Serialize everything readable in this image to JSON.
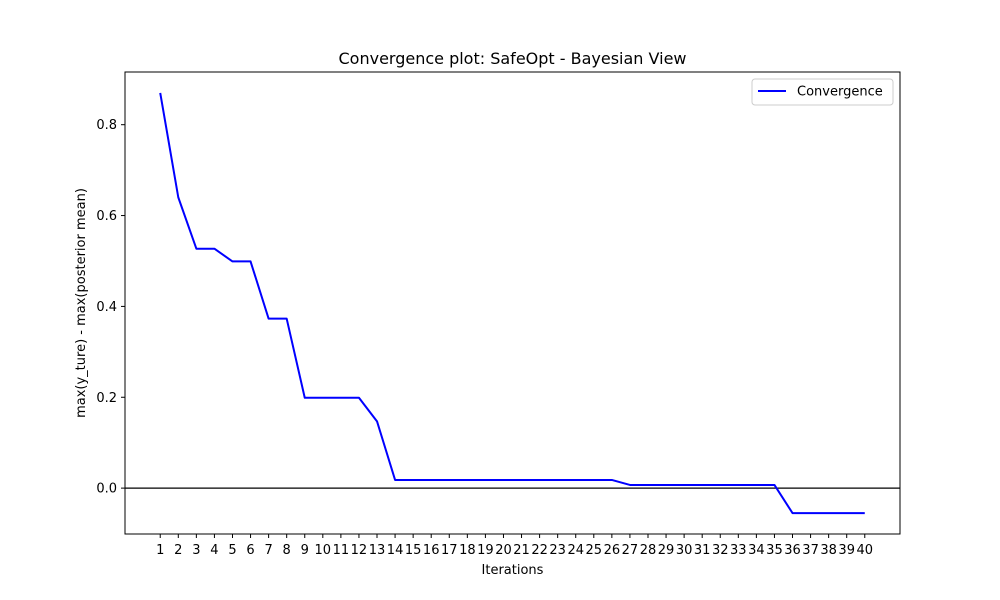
{
  "chart_data": {
    "type": "line",
    "title": "Convergence plot: SafeOpt - Bayesian View",
    "xlabel": "Iterations",
    "ylabel": "max(y_ture) - max(posterior mean)",
    "x": [
      1,
      2,
      3,
      4,
      5,
      6,
      7,
      8,
      9,
      10,
      11,
      12,
      13,
      14,
      15,
      16,
      17,
      18,
      19,
      20,
      21,
      22,
      23,
      24,
      25,
      26,
      27,
      28,
      29,
      30,
      31,
      32,
      33,
      34,
      35,
      36,
      37,
      38,
      39,
      40
    ],
    "series": [
      {
        "name": "Convergence",
        "color": "#0000ff",
        "values": [
          0.87,
          0.64,
          0.527,
          0.527,
          0.499,
          0.499,
          0.373,
          0.373,
          0.199,
          0.199,
          0.199,
          0.199,
          0.147,
          0.018,
          0.018,
          0.018,
          0.018,
          0.018,
          0.018,
          0.018,
          0.018,
          0.018,
          0.018,
          0.018,
          0.018,
          0.018,
          0.007,
          0.007,
          0.007,
          0.007,
          0.007,
          0.007,
          0.007,
          0.007,
          0.007,
          -0.055,
          -0.055,
          -0.055,
          -0.055,
          -0.055
        ]
      }
    ],
    "yticks": [
      0.0,
      0.2,
      0.4,
      0.6,
      0.8
    ],
    "ytick_labels": [
      "0.0",
      "0.2",
      "0.4",
      "0.6",
      "0.8"
    ],
    "xtick_labels": [
      "1",
      "2",
      "3",
      "4",
      "5",
      "6",
      "7",
      "8",
      "9",
      "10",
      "11",
      "12",
      "13",
      "14",
      "15",
      "16",
      "17",
      "18",
      "19",
      "20",
      "21",
      "22",
      "23",
      "24",
      "25",
      "26",
      "27",
      "28",
      "29",
      "30",
      "31",
      "32",
      "33",
      "34",
      "35",
      "36",
      "37",
      "38",
      "39",
      "40"
    ],
    "xlim": [
      -0.95,
      41.95
    ],
    "ylim": [
      -0.101,
      0.916
    ],
    "reference_line": {
      "y": 0,
      "color": "#000000"
    },
    "legend": {
      "position": "upper right",
      "entries": [
        "Convergence"
      ]
    },
    "grid": false
  }
}
